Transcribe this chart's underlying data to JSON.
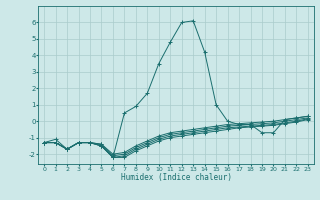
{
  "xlabel": "Humidex (Indice chaleur)",
  "xlim": [
    -0.5,
    23.5
  ],
  "ylim": [
    -2.6,
    7.0
  ],
  "yticks": [
    -2,
    -1,
    0,
    1,
    2,
    3,
    4,
    5,
    6
  ],
  "xticks": [
    0,
    1,
    2,
    3,
    4,
    5,
    6,
    7,
    8,
    9,
    10,
    11,
    12,
    13,
    14,
    15,
    16,
    17,
    18,
    19,
    20,
    21,
    22,
    23
  ],
  "background_color": "#cde8e8",
  "grid_color": "#aacccc",
  "line_color": "#1a6e6e",
  "lines": [
    {
      "x": [
        0,
        1,
        2,
        3,
        4,
        5,
        6,
        7,
        8,
        9,
        10,
        11,
        12,
        13,
        14,
        15,
        16,
        17,
        18,
        19,
        20,
        21,
        22,
        23
      ],
      "y": [
        -1.3,
        -1.1,
        -1.7,
        -1.3,
        -1.3,
        -1.5,
        -2.2,
        0.5,
        0.9,
        1.7,
        3.5,
        4.8,
        6.0,
        6.1,
        4.2,
        1.0,
        0.0,
        -0.2,
        -0.2,
        -0.7,
        -0.7,
        0.1,
        0.2,
        0.3
      ]
    },
    {
      "x": [
        0,
        1,
        2,
        3,
        4,
        5,
        6,
        7,
        8,
        9,
        10,
        11,
        12,
        13,
        14,
        15,
        16,
        17,
        18,
        19,
        20,
        21,
        22,
        23
      ],
      "y": [
        -1.3,
        -1.3,
        -1.7,
        -1.3,
        -1.3,
        -1.5,
        -2.2,
        -2.2,
        -1.8,
        -1.5,
        -1.2,
        -1.0,
        -0.9,
        -0.8,
        -0.7,
        -0.6,
        -0.5,
        -0.4,
        -0.35,
        -0.3,
        -0.25,
        -0.15,
        -0.05,
        0.1
      ]
    },
    {
      "x": [
        0,
        1,
        2,
        3,
        4,
        5,
        6,
        7,
        8,
        9,
        10,
        11,
        12,
        13,
        14,
        15,
        16,
        17,
        18,
        19,
        20,
        21,
        22,
        23
      ],
      "y": [
        -1.3,
        -1.3,
        -1.7,
        -1.3,
        -1.3,
        -1.5,
        -2.2,
        -2.1,
        -1.7,
        -1.4,
        -1.1,
        -0.9,
        -0.8,
        -0.7,
        -0.6,
        -0.5,
        -0.4,
        -0.35,
        -0.3,
        -0.25,
        -0.2,
        -0.1,
        0.0,
        0.15
      ]
    },
    {
      "x": [
        0,
        1,
        2,
        3,
        4,
        5,
        6,
        7,
        8,
        9,
        10,
        11,
        12,
        13,
        14,
        15,
        16,
        17,
        18,
        19,
        20,
        21,
        22,
        23
      ],
      "y": [
        -1.3,
        -1.3,
        -1.7,
        -1.3,
        -1.3,
        -1.4,
        -2.1,
        -2.0,
        -1.6,
        -1.3,
        -1.0,
        -0.8,
        -0.7,
        -0.6,
        -0.5,
        -0.4,
        -0.3,
        -0.25,
        -0.2,
        -0.15,
        -0.1,
        0.0,
        0.1,
        0.2
      ]
    },
    {
      "x": [
        0,
        1,
        2,
        3,
        4,
        5,
        6,
        7,
        8,
        9,
        10,
        11,
        12,
        13,
        14,
        15,
        16,
        17,
        18,
        19,
        20,
        21,
        22,
        23
      ],
      "y": [
        -1.3,
        -1.3,
        -1.7,
        -1.3,
        -1.3,
        -1.4,
        -2.0,
        -1.9,
        -1.5,
        -1.2,
        -0.9,
        -0.7,
        -0.6,
        -0.5,
        -0.4,
        -0.3,
        -0.2,
        -0.15,
        -0.1,
        -0.05,
        0.0,
        0.1,
        0.2,
        0.3
      ]
    }
  ]
}
